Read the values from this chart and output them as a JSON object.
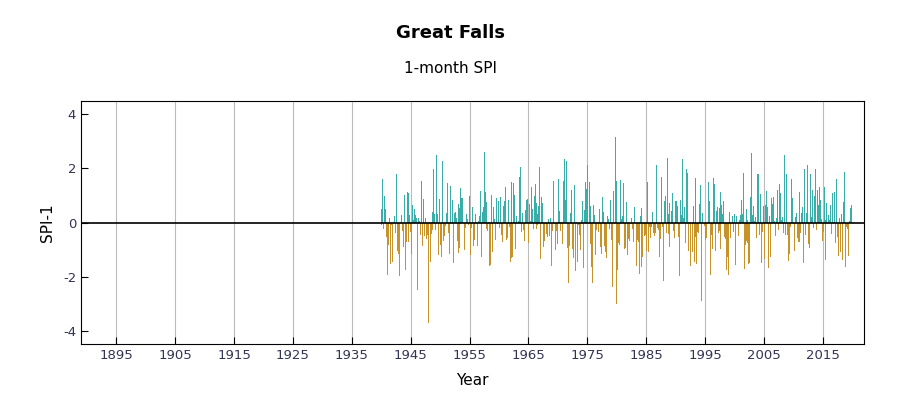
{
  "title": "Great Falls",
  "subtitle": "1-month SPI",
  "xlabel": "Year",
  "ylabel": "SPI-1",
  "ylim": [
    -4.5,
    4.5
  ],
  "xlim": [
    1889,
    2022
  ],
  "yticks": [
    -4,
    -2,
    0,
    2,
    4
  ],
  "xticks": [
    1895,
    1905,
    1915,
    1925,
    1935,
    1945,
    1955,
    1965,
    1975,
    1985,
    1995,
    2005,
    2015
  ],
  "data_start_year": 1940,
  "data_end_year": 2020,
  "n_months": 961,
  "positive_color": "#3aada8",
  "negative_color": "#c8922a",
  "zero_line_color": "#000000",
  "grid_color": "#bbbbbb",
  "background_color": "#ffffff",
  "title_fontsize": 13,
  "subtitle_fontsize": 11,
  "axis_label_fontsize": 11,
  "tick_fontsize": 9.5,
  "tick_color": "#333355",
  "seed": 42
}
